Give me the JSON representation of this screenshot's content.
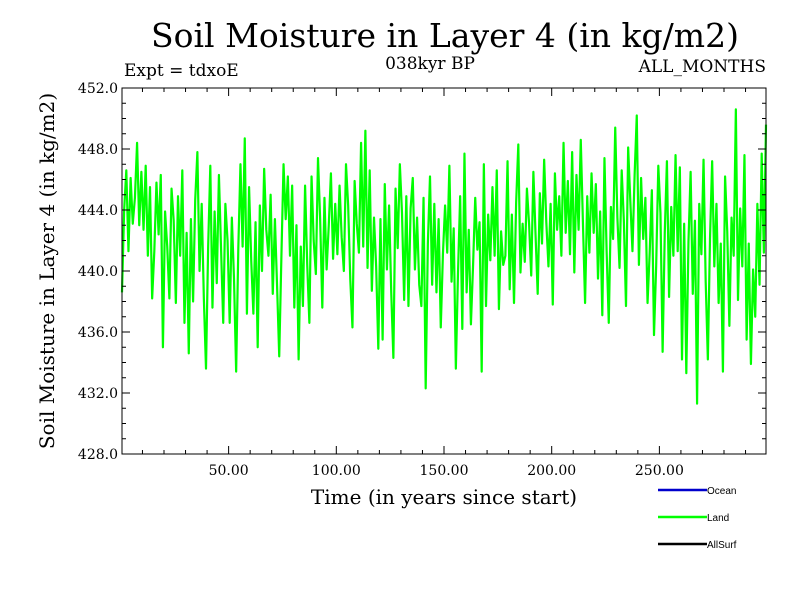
{
  "chart_data": {
    "type": "line",
    "title": "Soil Moisture in Layer 4 (in kg/m2)",
    "subtitle": "038kyr BP",
    "expt_label": "Expt = tdxoE",
    "period_label": "ALL_MONTHS",
    "xlabel": "Time (in years since start)",
    "ylabel": "Soil Moisture in Layer 4 (in kg/m2)",
    "xlim": [
      0.5,
      299.5
    ],
    "ylim": [
      428.0,
      452.0
    ],
    "xticks": [
      50,
      100,
      150,
      200,
      250
    ],
    "xtick_labels": [
      "50.00",
      "100.00",
      "150.00",
      "200.00",
      "250.00"
    ],
    "yticks": [
      428,
      432,
      436,
      440,
      444,
      448,
      452
    ],
    "ytick_labels": [
      "428.0",
      "432.0",
      "436.0",
      "440.0",
      "444.0",
      "448.0",
      "452.0"
    ],
    "grid": false,
    "legend_position": "bottom-right",
    "series": [
      {
        "name": "Ocean",
        "color": "#0000cc",
        "values": []
      },
      {
        "name": "Land",
        "color": "#00ff00",
        "x_start": 0.5,
        "x_step": 1.0,
        "values": [
          438.6,
          444.0,
          446.6,
          441.3,
          446.1,
          443.1,
          444.8,
          448.4,
          443.0,
          446.5,
          442.7,
          446.9,
          441.0,
          445.5,
          438.2,
          441.3,
          445.8,
          442.4,
          446.3,
          435.0,
          443.9,
          441.6,
          438.2,
          445.4,
          443.3,
          437.9,
          444.9,
          441.0,
          446.6,
          436.6,
          442.5,
          434.6,
          443.4,
          438.0,
          444.7,
          447.8,
          440.0,
          444.4,
          438.2,
          433.6,
          441.6,
          446.9,
          437.6,
          443.9,
          439.2,
          446.3,
          441.4,
          436.6,
          444.4,
          442.0,
          436.6,
          443.5,
          439.5,
          433.4,
          441.5,
          447.0,
          441.6,
          448.7,
          437.2,
          445.5,
          440.7,
          437.2,
          443.2,
          435.0,
          444.3,
          440.0,
          446.7,
          442.7,
          441.0,
          445.0,
          438.5,
          443.4,
          439.0,
          434.4,
          440.9,
          447.0,
          443.4,
          446.2,
          441.0,
          445.6,
          437.6,
          443.0,
          434.2,
          441.6,
          437.7,
          445.6,
          440.4,
          436.6,
          446.2,
          442.0,
          439.8,
          447.4,
          443.4,
          437.6,
          444.8,
          440.1,
          443.0,
          446.4,
          440.8,
          444.4,
          441.1,
          445.6,
          442.2,
          440.0,
          447.0,
          444.3,
          439.4,
          436.3,
          445.9,
          443.1,
          441.2,
          448.4,
          441.6,
          449.2,
          440.2,
          446.6,
          438.7,
          443.5,
          440.3,
          434.9,
          443.4,
          435.5,
          445.7,
          440.1,
          444.3,
          438.6,
          434.3,
          445.4,
          441.5,
          447.0,
          443.8,
          438.1,
          444.9,
          437.7,
          444.1,
          446.1,
          440.1,
          443.5,
          439.1,
          437.7,
          444.8,
          432.3,
          441.8,
          446.2,
          439.1,
          444.4,
          438.6,
          443.4,
          436.3,
          441.1,
          444.3,
          441.2,
          446.9,
          439.3,
          442.8,
          433.6,
          439.9,
          444.9,
          436.2,
          447.7,
          438.6,
          442.7,
          436.5,
          440.4,
          444.8,
          441.4,
          443.2,
          433.4,
          447.0,
          437.7,
          443.7,
          440.7,
          445.5,
          441.0,
          446.6,
          437.5,
          442.6,
          440.4,
          441.0,
          447.2,
          438.8,
          443.7,
          437.9,
          444.5,
          448.3,
          439.9,
          443.1,
          440.6,
          445.4,
          443.1,
          439.7,
          446.5,
          442.4,
          438.5,
          445.1,
          441.8,
          447.3,
          443.2,
          440.3,
          444.4,
          437.8,
          446.4,
          442.7,
          444.9,
          441.0,
          448.4,
          442.5,
          445.9,
          441.1,
          447.8,
          439.9,
          446.3,
          442.7,
          448.6,
          443.2,
          437.9,
          444.9,
          441.2,
          446.4,
          442.5,
          445.7,
          439.5,
          443.9,
          437.1,
          447.4,
          441.3,
          436.6,
          444.2,
          442.1,
          449.4,
          443.5,
          440.2,
          446.6,
          443.3,
          437.7,
          448.1,
          444.6,
          441.3,
          446.3,
          450.2,
          440.4,
          446.1,
          442.1,
          444.8,
          437.9,
          441.2,
          445.3,
          435.8,
          440.3,
          446.9,
          443.8,
          434.7,
          442.5,
          447.2,
          438.3,
          444.2,
          441.0,
          447.6,
          441.3,
          446.8,
          434.2,
          443.1,
          433.3,
          441.9,
          446.5,
          438.5,
          443.3,
          431.3,
          444.4,
          441.1,
          447.3,
          439.3,
          434.2,
          442.1,
          447.2,
          440.3,
          444.4,
          437.9,
          441.8,
          433.4,
          446.2,
          442.6,
          436.4,
          443.5,
          441.0,
          450.6,
          438.1,
          444.1,
          440.3,
          447.6,
          435.5,
          441.8,
          433.9,
          440.1,
          437.0,
          444.4,
          439.1,
          447.7,
          441.2,
          449.6
        ]
      },
      {
        "name": "AllSurf",
        "color": "#000000",
        "values": []
      }
    ]
  }
}
